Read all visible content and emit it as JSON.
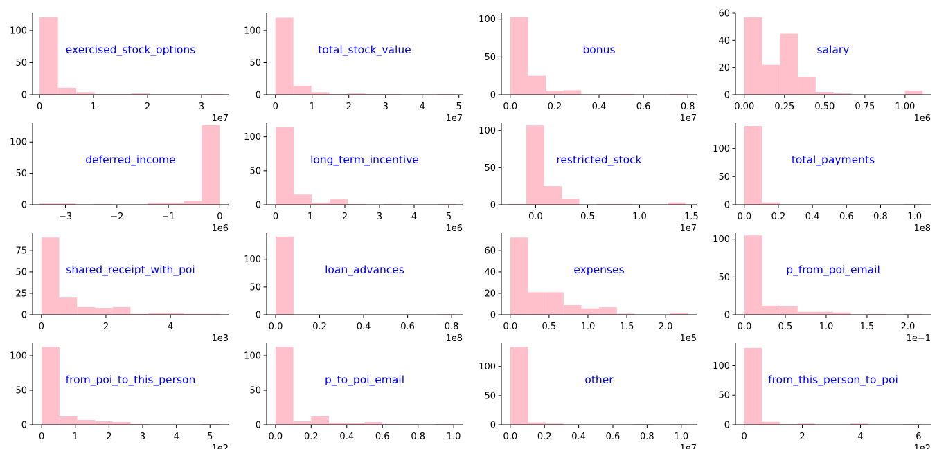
{
  "colors": {
    "bar": "#ffc0cb",
    "title": "#0000ff",
    "axis": "#000000"
  },
  "chart_data": [
    {
      "type": "bar",
      "title": "exercised_stock_options",
      "x_range": [
        -1300000,
        35000000
      ],
      "ylim": [
        0,
        127
      ],
      "xticks": [
        0,
        10000000,
        20000000,
        30000000
      ],
      "xtick_labels": [
        "0",
        "1",
        "2",
        "3"
      ],
      "x_offset_label": "1e7",
      "yticks": [
        0,
        50,
        100
      ],
      "ytick_labels": [
        "0",
        "50",
        "100"
      ],
      "bin_edges": [
        0,
        3400000,
        6800000,
        10200000,
        13600000,
        17000000,
        20400000,
        23800000,
        27200000,
        30600000,
        34000000
      ],
      "values": [
        121,
        11,
        4,
        1,
        1,
        2,
        0,
        0,
        0,
        1
      ]
    },
    {
      "type": "bar",
      "title": "total_stock_value",
      "x_range": [
        -2400000,
        51000000
      ],
      "ylim": [
        0,
        127
      ],
      "xticks": [
        0,
        10000000,
        20000000,
        30000000,
        40000000,
        50000000
      ],
      "xtick_labels": [
        "0",
        "1",
        "2",
        "3",
        "4",
        "5"
      ],
      "x_offset_label": "1e7",
      "yticks": [
        0,
        50,
        100
      ],
      "ytick_labels": [
        "0",
        "50",
        "100"
      ],
      "bin_edges": [
        0,
        4900000,
        9800000,
        14700000,
        19600000,
        24500000,
        29400000,
        34300000,
        39200000,
        44100000,
        49000000
      ],
      "values": [
        120,
        14,
        4,
        1,
        2,
        1,
        1,
        0,
        0,
        1
      ]
    },
    {
      "type": "bar",
      "title": "bonus",
      "x_range": [
        -400000,
        8400000
      ],
      "ylim": [
        0,
        108
      ],
      "xticks": [
        0,
        2000000,
        4000000,
        6000000,
        8000000
      ],
      "xtick_labels": [
        "0.0",
        "0.2",
        "0.4",
        "0.6",
        "0.8"
      ],
      "x_offset_label": "1e7",
      "yticks": [
        0,
        50,
        100
      ],
      "ytick_labels": [
        "0",
        "50",
        "100"
      ],
      "bin_edges": [
        0,
        800000,
        1600000,
        2400000,
        3200000,
        4000000,
        4800000,
        5600000,
        6400000,
        7200000,
        8000000
      ],
      "values": [
        103,
        25,
        5,
        6,
        0,
        1,
        1,
        0,
        0,
        1
      ]
    },
    {
      "type": "bar",
      "title": "salary",
      "x_range": [
        -55000,
        1160000
      ],
      "ylim": [
        0,
        60
      ],
      "xticks": [
        0,
        250000,
        500000,
        750000,
        1000000
      ],
      "xtick_labels": [
        "0.00",
        "0.25",
        "0.50",
        "0.75",
        "1.00"
      ],
      "x_offset_label": "1e6",
      "yticks": [
        0,
        20,
        40,
        60
      ],
      "ytick_labels": [
        "0",
        "20",
        "40",
        "60"
      ],
      "bin_edges": [
        0,
        111000,
        222000,
        333000,
        444000,
        555000,
        666000,
        777000,
        888000,
        999000,
        1110000
      ],
      "values": [
        57,
        22,
        45,
        13,
        2,
        1,
        0,
        0,
        0,
        3
      ]
    },
    {
      "type": "bar",
      "title": "deferred_income",
      "x_range": [
        -3640000,
        170000
      ],
      "ylim": [
        0,
        130
      ],
      "xticks": [
        -3000000,
        -2000000,
        -1000000,
        0
      ],
      "xtick_labels": [
        "−3",
        "−2",
        "−1",
        "0"
      ],
      "x_offset_label": "1e6",
      "yticks": [
        0,
        50,
        100
      ],
      "ytick_labels": [
        "0",
        "50",
        "100"
      ],
      "bin_edges": [
        -3500000,
        -3150000,
        -2800000,
        -2450000,
        -2100000,
        -1750000,
        -1400000,
        -1050000,
        -700000,
        -350000,
        0
      ],
      "values": [
        2,
        2,
        0,
        1,
        0,
        0,
        3,
        3,
        6,
        127
      ]
    },
    {
      "type": "bar",
      "title": "long_term_incentive",
      "x_range": [
        -260000,
        5400000
      ],
      "ylim": [
        0,
        120
      ],
      "xticks": [
        0,
        1000000,
        2000000,
        3000000,
        4000000,
        5000000
      ],
      "xtick_labels": [
        "0",
        "1",
        "2",
        "3",
        "4",
        "5"
      ],
      "x_offset_label": "1e6",
      "yticks": [
        0,
        50,
        100
      ],
      "ytick_labels": [
        "0",
        "50",
        "100"
      ],
      "bin_edges": [
        0,
        520000,
        1040000,
        1560000,
        2080000,
        2600000,
        3120000,
        3640000,
        4160000,
        4680000,
        5200000
      ],
      "values": [
        114,
        15,
        3,
        8,
        1,
        0,
        1,
        0,
        0,
        1
      ]
    },
    {
      "type": "bar",
      "title": "restricted_stock",
      "x_range": [
        -3300000,
        15500000
      ],
      "ylim": [
        0,
        110
      ],
      "xticks": [
        0,
        5000000,
        10000000,
        15000000
      ],
      "xtick_labels": [
        "0.0",
        "0.5",
        "1.0",
        "1.5"
      ],
      "x_offset_label": "1e7",
      "yticks": [
        0,
        50,
        100
      ],
      "ytick_labels": [
        "0",
        "50",
        "100"
      ],
      "bin_edges": [
        -2600000,
        -900000,
        800000,
        2500000,
        4200000,
        5900000,
        7600000,
        9300000,
        11000000,
        12700000,
        14400000
      ],
      "values": [
        1,
        107,
        25,
        8,
        0,
        1,
        1,
        0,
        0,
        3
      ]
    },
    {
      "type": "bar",
      "title": "total_payments",
      "x_range": [
        -5200000,
        109500000
      ],
      "ylim": [
        0,
        145
      ],
      "xticks": [
        0,
        20000000,
        40000000,
        60000000,
        80000000,
        100000000
      ],
      "xtick_labels": [
        "0.0",
        "0.2",
        "0.4",
        "0.6",
        "0.8",
        "1.0"
      ],
      "x_offset_label": "1e8",
      "yticks": [
        0,
        50,
        100
      ],
      "ytick_labels": [
        "0",
        "50",
        "100"
      ],
      "bin_edges": [
        0,
        10400000,
        20800000,
        31200000,
        41600000,
        52000000,
        62400000,
        72800000,
        83200000,
        93600000,
        104000000
      ],
      "values": [
        140,
        4,
        0,
        0,
        0,
        0,
        0,
        0,
        0,
        1
      ]
    },
    {
      "type": "bar",
      "title": "shared_receipt_with_poi",
      "x_range": [
        -275,
        5800
      ],
      "ylim": [
        0,
        95
      ],
      "xticks": [
        0,
        2000,
        4000
      ],
      "xtick_labels": [
        "0",
        "2",
        "4"
      ],
      "x_offset_label": "1e3",
      "yticks": [
        0,
        25,
        50,
        75
      ],
      "ytick_labels": [
        "0",
        "25",
        "50",
        "75"
      ],
      "bin_edges": [
        0,
        552,
        1104,
        1656,
        2208,
        2760,
        3312,
        3864,
        4416,
        4968,
        5520
      ],
      "values": [
        90,
        20,
        9,
        8,
        9,
        1,
        2,
        2,
        1,
        1
      ]
    },
    {
      "type": "bar",
      "title": "loan_advances",
      "x_range": [
        -4100000,
        85000000
      ],
      "ylim": [
        0,
        147
      ],
      "xticks": [
        0,
        20000000,
        40000000,
        60000000,
        80000000
      ],
      "xtick_labels": [
        "0.0",
        "0.2",
        "0.4",
        "0.6",
        "0.8"
      ],
      "x_offset_label": "1e8",
      "yticks": [
        0,
        50,
        100
      ],
      "ytick_labels": [
        "0",
        "50",
        "100"
      ],
      "bin_edges": [
        0,
        8150000,
        16300000,
        24450000,
        32600000,
        40750000,
        48900000,
        57050000,
        65200000,
        73350000,
        81500000
      ],
      "values": [
        141,
        0,
        0,
        0,
        0,
        0,
        0,
        0,
        0,
        1
      ]
    },
    {
      "type": "bar",
      "title": "expenses",
      "x_range": [
        -11400,
        240000
      ],
      "ylim": [
        0,
        76
      ],
      "xticks": [
        0,
        50000,
        100000,
        150000,
        200000
      ],
      "xtick_labels": [
        "0.0",
        "0.5",
        "1.0",
        "1.5",
        "2.0"
      ],
      "x_offset_label": "1e5",
      "yticks": [
        0,
        20,
        40,
        60
      ],
      "ytick_labels": [
        "0",
        "20",
        "40",
        "60"
      ],
      "bin_edges": [
        0,
        22880,
        45760,
        68640,
        91520,
        114400,
        137280,
        160160,
        183040,
        205920,
        228800
      ],
      "values": [
        72,
        21,
        21,
        9,
        6,
        7,
        1,
        0,
        0,
        2
      ]
    },
    {
      "type": "bar",
      "title": "p_from_poi_email",
      "x_range": [
        -0.011,
        0.228
      ],
      "ylim": [
        0,
        108
      ],
      "xticks": [
        0,
        0.05,
        0.1,
        0.15,
        0.2
      ],
      "xtick_labels": [
        "0.0",
        "0.5",
        "1.0",
        "1.5",
        "2.0"
      ],
      "x_offset_label": "1e−1",
      "yticks": [
        0,
        50,
        100
      ],
      "ytick_labels": [
        "0",
        "50",
        "100"
      ],
      "bin_edges": [
        0,
        0.0217,
        0.0434,
        0.0651,
        0.0868,
        0.1085,
        0.1302,
        0.1519,
        0.1736,
        0.1953,
        0.217
      ],
      "values": [
        105,
        12,
        11,
        4,
        4,
        3,
        0,
        1,
        0,
        1
      ]
    },
    {
      "type": "bar",
      "title": "from_poi_to_this_person",
      "x_range": [
        -27,
        555
      ],
      "ylim": [
        0,
        118
      ],
      "xticks": [
        0,
        100,
        200,
        300,
        400,
        500
      ],
      "xtick_labels": [
        "0",
        "1",
        "2",
        "3",
        "4",
        "5"
      ],
      "x_offset_label": "1e2",
      "yticks": [
        0,
        50,
        100
      ],
      "ytick_labels": [
        "0",
        "50",
        "100"
      ],
      "bin_edges": [
        0,
        52.8,
        105.6,
        158.4,
        211.2,
        264,
        316.8,
        369.6,
        422.4,
        475.2,
        528
      ],
      "values": [
        113,
        12,
        7,
        5,
        4,
        1,
        0,
        0,
        0,
        1
      ]
    },
    {
      "type": "bar",
      "title": "p_to_poi_email",
      "x_range": [
        -0.05,
        1.05
      ],
      "ylim": [
        0,
        118
      ],
      "xticks": [
        0,
        0.2,
        0.4,
        0.6,
        0.8,
        1.0
      ],
      "xtick_labels": [
        "0.0",
        "0.2",
        "0.4",
        "0.6",
        "0.8",
        "1.0"
      ],
      "yticks": [
        0,
        50,
        100
      ],
      "ytick_labels": [
        "0",
        "50",
        "100"
      ],
      "bin_edges": [
        0,
        0.1,
        0.2,
        0.3,
        0.4,
        0.5,
        0.6,
        0.7,
        0.8,
        0.9,
        1.0
      ],
      "values": [
        113,
        5,
        12,
        3,
        2,
        4,
        1,
        1,
        0,
        1
      ]
    },
    {
      "type": "bar",
      "title": "other",
      "x_range": [
        -520000,
        10900000
      ],
      "ylim": [
        0,
        140
      ],
      "xticks": [
        0,
        2000000,
        4000000,
        6000000,
        8000000,
        10000000
      ],
      "xtick_labels": [
        "0.0",
        "0.2",
        "0.4",
        "0.6",
        "0.8",
        "1.0"
      ],
      "x_offset_label": "1e7",
      "yticks": [
        0,
        50,
        100
      ],
      "ytick_labels": [
        "0",
        "50",
        "100"
      ],
      "bin_edges": [
        0,
        1036000,
        2072000,
        3108000,
        4144000,
        5180000,
        6216000,
        7252000,
        8288000,
        9324000,
        10360000
      ],
      "values": [
        134,
        4,
        2,
        0,
        0,
        0,
        0,
        1,
        0,
        1
      ]
    },
    {
      "type": "bar",
      "title": "from_this_person_to_poi",
      "x_range": [
        -30,
        642
      ],
      "ylim": [
        0,
        138
      ],
      "xticks": [
        0,
        200,
        400,
        600
      ],
      "xtick_labels": [
        "0",
        "2",
        "4",
        "6"
      ],
      "x_offset_label": "1e2",
      "yticks": [
        0,
        50,
        100
      ],
      "ytick_labels": [
        "0",
        "50",
        "100"
      ],
      "bin_edges": [
        0,
        60.9,
        121.8,
        182.7,
        243.6,
        304.5,
        365.4,
        426.3,
        487.2,
        548.1,
        609
      ],
      "values": [
        130,
        5,
        1,
        2,
        0,
        0,
        2,
        0,
        0,
        1
      ]
    }
  ]
}
